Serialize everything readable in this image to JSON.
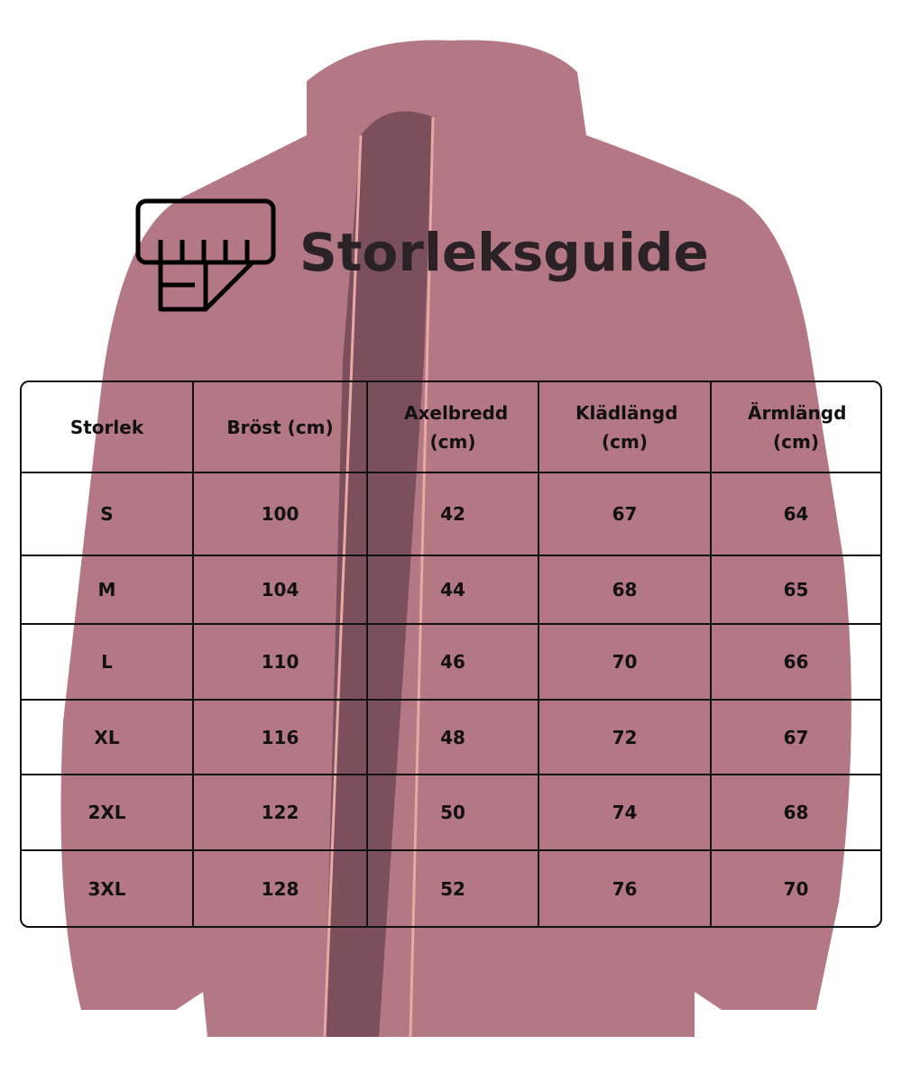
{
  "title": "Storleksguide",
  "icon": "measuring-tape-ruler-icon",
  "background_color": "#a6606f",
  "table": {
    "headers": [
      "Storlek",
      "Bröst (cm)",
      "Axelbredd (cm)",
      "Klädlängd (cm)",
      "Ärmlängd (cm)"
    ],
    "rows": [
      [
        "S",
        "100",
        "42",
        "67",
        "64"
      ],
      [
        "M",
        "104",
        "44",
        "68",
        "65"
      ],
      [
        "L",
        "110",
        "46",
        "70",
        "66"
      ],
      [
        "XL",
        "116",
        "48",
        "72",
        "67"
      ],
      [
        "2XL",
        "122",
        "50",
        "74",
        "68"
      ],
      [
        "3XL",
        "128",
        "52",
        "76",
        "70"
      ]
    ]
  }
}
